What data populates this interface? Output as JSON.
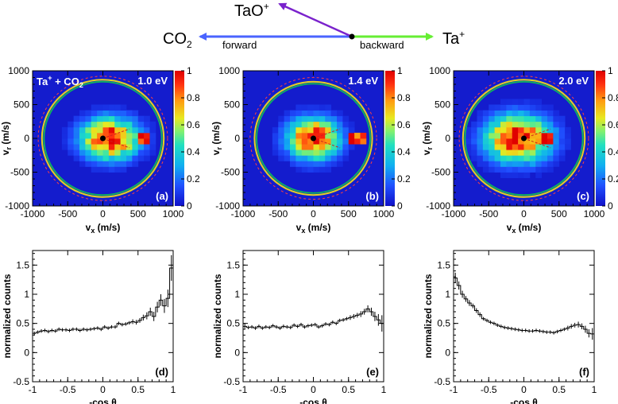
{
  "diagram": {
    "product": "TaO",
    "product_charge": "+",
    "co2_label": "CO",
    "co2_sub": "2",
    "ta_label": "Ta",
    "ta_charge": "+",
    "forward_label": "forward",
    "backward_label": "backward",
    "colors": {
      "forward": "#4a64ff",
      "backward": "#66ee33",
      "product": "#7a22cc"
    }
  },
  "chart_data": [
    {
      "type": "heatmap",
      "panel": "(a)",
      "energy": "1.0 eV",
      "reaction": {
        "a": "Ta",
        "a_charge": "+",
        "plus": " + CO",
        "sub": "2"
      },
      "xlabel": "v",
      "xlabel_sub": "x",
      "xlabel_unit": " (m/s)",
      "ylabel": "v",
      "ylabel_sub": "r",
      "ylabel_unit": " (m/s)",
      "xlim": [
        -1000,
        1000
      ],
      "ylim": [
        -1000,
        1000
      ],
      "xticks": [
        -1000,
        -500,
        0,
        500,
        1000
      ],
      "yticks": [
        1000,
        500,
        0,
        -500,
        -1000
      ],
      "colorbar_ticks": [
        "1",
        "0.8",
        "0.6",
        "0.4",
        "0.2",
        "0"
      ],
      "outer_circle_radius": 850,
      "dashed_circle_radius": 920,
      "blob": {
        "center": 100,
        "sigma_x": 280,
        "sigma_y": 210,
        "forward_spike": 560
      }
    },
    {
      "type": "heatmap",
      "panel": "(b)",
      "energy": "1.4 eV",
      "xlabel": "v",
      "xlabel_sub": "x",
      "xlabel_unit": " (m/s)",
      "ylabel": "v",
      "ylabel_sub": "r",
      "ylabel_unit": " (m/s)",
      "xlim": [
        -1000,
        1000
      ],
      "ylim": [
        -1000,
        1000
      ],
      "xticks": [
        -1000,
        -500,
        0,
        500,
        1000
      ],
      "yticks": [
        1000,
        500,
        0,
        -500,
        -1000
      ],
      "colorbar_ticks": [
        "1",
        "0.8",
        "0.6",
        "0.4",
        "0.2",
        "0"
      ],
      "outer_circle_radius": 820,
      "dashed_circle_radius": 900,
      "blob": {
        "center": 0,
        "sigma_x": 250,
        "sigma_y": 210,
        "forward_spike": 620
      }
    },
    {
      "type": "heatmap",
      "panel": "(c)",
      "energy": "2.0 eV",
      "xlabel": "v",
      "xlabel_sub": "x",
      "xlabel_unit": " (m/s)",
      "ylabel": "v",
      "ylabel_sub": "r",
      "ylabel_unit": " (m/s)",
      "xlim": [
        -1000,
        1000
      ],
      "ylim": [
        -1000,
        1000
      ],
      "xticks": [
        -1000,
        -500,
        0,
        500,
        1000
      ],
      "yticks": [
        1000,
        500,
        0,
        -500,
        -1000
      ],
      "colorbar_ticks": [
        "1",
        "0.8",
        "0.6",
        "0.4",
        "0.2",
        "0"
      ],
      "outer_circle_radius": 850,
      "dashed_circle_radius": 920,
      "blob": {
        "center": -80,
        "sigma_x": 320,
        "sigma_y": 240,
        "forward_spike": 320
      }
    },
    {
      "type": "line",
      "panel": "(d)",
      "xlabel": "-cos θ",
      "ylabel": "normalized counts",
      "xlim": [
        -1,
        1
      ],
      "ylim": [
        -0.5,
        1.75
      ],
      "xticks": [
        "-1",
        "-0.5",
        "0",
        "0.5",
        "1"
      ],
      "yticks": [
        "1.5",
        "1",
        "0.5",
        "0",
        "-0.5"
      ],
      "x": [
        -0.975,
        -0.925,
        -0.875,
        -0.825,
        -0.775,
        -0.725,
        -0.675,
        -0.625,
        -0.575,
        -0.525,
        -0.475,
        -0.425,
        -0.375,
        -0.325,
        -0.275,
        -0.225,
        -0.175,
        -0.125,
        -0.075,
        -0.025,
        0.025,
        0.075,
        0.125,
        0.175,
        0.225,
        0.275,
        0.325,
        0.375,
        0.425,
        0.475,
        0.525,
        0.575,
        0.625,
        0.675,
        0.725,
        0.775,
        0.825,
        0.875,
        0.925,
        0.975
      ],
      "y": [
        0.33,
        0.35,
        0.37,
        0.38,
        0.36,
        0.38,
        0.37,
        0.4,
        0.39,
        0.39,
        0.38,
        0.4,
        0.4,
        0.38,
        0.4,
        0.39,
        0.4,
        0.41,
        0.42,
        0.4,
        0.44,
        0.42,
        0.44,
        0.44,
        0.5,
        0.48,
        0.49,
        0.51,
        0.53,
        0.52,
        0.55,
        0.6,
        0.63,
        0.7,
        0.62,
        0.78,
        0.9,
        0.8,
        0.93,
        1.45
      ],
      "err": [
        0.03,
        0.03,
        0.03,
        0.03,
        0.03,
        0.03,
        0.03,
        0.03,
        0.03,
        0.03,
        0.03,
        0.03,
        0.03,
        0.03,
        0.03,
        0.03,
        0.03,
        0.03,
        0.03,
        0.03,
        0.03,
        0.03,
        0.03,
        0.03,
        0.03,
        0.03,
        0.03,
        0.03,
        0.04,
        0.04,
        0.04,
        0.05,
        0.06,
        0.07,
        0.08,
        0.09,
        0.1,
        0.12,
        0.15,
        0.22
      ]
    },
    {
      "type": "line",
      "panel": "(e)",
      "xlabel": "-cos θ",
      "ylabel": "normalized counts",
      "xlim": [
        -1,
        1
      ],
      "ylim": [
        -0.5,
        1.75
      ],
      "xticks": [
        "-1",
        "-0.5",
        "0",
        "0.5",
        "1"
      ],
      "yticks": [
        "1.5",
        "1",
        "0.5",
        "0",
        "-0.5"
      ],
      "x": [
        -0.975,
        -0.925,
        -0.875,
        -0.825,
        -0.775,
        -0.725,
        -0.675,
        -0.625,
        -0.575,
        -0.525,
        -0.475,
        -0.425,
        -0.375,
        -0.325,
        -0.275,
        -0.225,
        -0.175,
        -0.125,
        -0.075,
        -0.025,
        0.025,
        0.075,
        0.125,
        0.175,
        0.225,
        0.275,
        0.325,
        0.375,
        0.425,
        0.475,
        0.525,
        0.575,
        0.625,
        0.675,
        0.725,
        0.775,
        0.825,
        0.875,
        0.925,
        0.975
      ],
      "y": [
        0.45,
        0.43,
        0.44,
        0.42,
        0.45,
        0.42,
        0.44,
        0.43,
        0.46,
        0.44,
        0.42,
        0.45,
        0.44,
        0.43,
        0.47,
        0.45,
        0.48,
        0.44,
        0.46,
        0.47,
        0.48,
        0.44,
        0.46,
        0.49,
        0.48,
        0.52,
        0.5,
        0.55,
        0.56,
        0.58,
        0.6,
        0.62,
        0.64,
        0.66,
        0.7,
        0.75,
        0.7,
        0.62,
        0.56,
        0.5
      ],
      "err": [
        0.04,
        0.03,
        0.03,
        0.03,
        0.03,
        0.03,
        0.03,
        0.03,
        0.03,
        0.03,
        0.03,
        0.03,
        0.03,
        0.03,
        0.03,
        0.03,
        0.03,
        0.03,
        0.03,
        0.03,
        0.03,
        0.03,
        0.03,
        0.03,
        0.03,
        0.03,
        0.03,
        0.03,
        0.03,
        0.03,
        0.04,
        0.04,
        0.04,
        0.05,
        0.05,
        0.06,
        0.07,
        0.08,
        0.1,
        0.14
      ]
    },
    {
      "type": "line",
      "panel": "(f)",
      "xlabel": "-cos θ",
      "ylabel": "normalized counts",
      "xlim": [
        -1,
        1
      ],
      "ylim": [
        -0.5,
        1.75
      ],
      "xticks": [
        "-1",
        "-0.5",
        "0",
        "0.5",
        "1"
      ],
      "yticks": [
        "1.5",
        "1",
        "0.5",
        "0",
        "-0.5"
      ],
      "x": [
        -0.975,
        -0.925,
        -0.875,
        -0.825,
        -0.775,
        -0.725,
        -0.675,
        -0.625,
        -0.575,
        -0.525,
        -0.475,
        -0.425,
        -0.375,
        -0.325,
        -0.275,
        -0.225,
        -0.175,
        -0.125,
        -0.075,
        -0.025,
        0.025,
        0.075,
        0.125,
        0.175,
        0.225,
        0.275,
        0.325,
        0.375,
        0.425,
        0.475,
        0.525,
        0.575,
        0.625,
        0.675,
        0.725,
        0.775,
        0.825,
        0.875,
        0.925,
        0.975
      ],
      "y": [
        1.28,
        1.15,
        1.0,
        0.92,
        0.85,
        0.8,
        0.72,
        0.65,
        0.58,
        0.55,
        0.52,
        0.5,
        0.47,
        0.45,
        0.43,
        0.42,
        0.41,
        0.4,
        0.39,
        0.38,
        0.38,
        0.37,
        0.37,
        0.38,
        0.37,
        0.36,
        0.35,
        0.35,
        0.34,
        0.36,
        0.38,
        0.4,
        0.42,
        0.45,
        0.47,
        0.48,
        0.45,
        0.4,
        0.33,
        0.32
      ],
      "err": [
        0.09,
        0.07,
        0.06,
        0.05,
        0.05,
        0.04,
        0.04,
        0.04,
        0.03,
        0.03,
        0.03,
        0.03,
        0.03,
        0.03,
        0.03,
        0.03,
        0.03,
        0.03,
        0.03,
        0.03,
        0.03,
        0.03,
        0.03,
        0.03,
        0.03,
        0.03,
        0.03,
        0.03,
        0.03,
        0.03,
        0.03,
        0.03,
        0.04,
        0.04,
        0.04,
        0.05,
        0.05,
        0.06,
        0.07,
        0.1
      ]
    }
  ]
}
